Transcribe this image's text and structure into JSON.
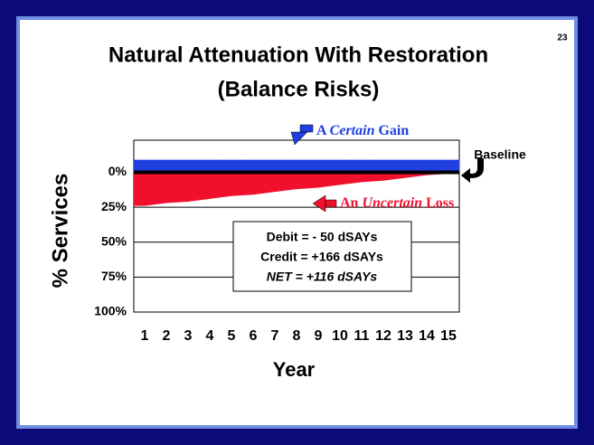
{
  "slide_number": "23",
  "chart_data": {
    "type": "balance",
    "title": [
      "Natural Attenuation With Restoration",
      "(Balance Risks)"
    ],
    "ylabel": "% Services",
    "xlabel": "Year",
    "categories": [
      "1",
      "2",
      "3",
      "4",
      "5",
      "6",
      "7",
      "8",
      "9",
      "10",
      "11",
      "12",
      "13",
      "14",
      "15"
    ],
    "ylim": [
      -23,
      100
    ],
    "yticks": [
      {
        "value": 0,
        "label": "0%"
      },
      {
        "value": 25,
        "label": "25%"
      },
      {
        "value": 50,
        "label": "50%"
      },
      {
        "value": 75,
        "label": "75%"
      },
      {
        "value": 100,
        "label": "100%"
      }
    ],
    "grid": true,
    "series": [
      {
        "name": [
          "A ",
          "Certain",
          " Gain"
        ],
        "color": "#1f3fe0",
        "values": [
          -9,
          -9,
          -9,
          -9,
          -9,
          -9,
          -9,
          -9,
          -9,
          -9,
          -9,
          -9,
          -9,
          -9,
          -9
        ]
      },
      {
        "name": [
          "An ",
          "Uncertain",
          " Loss"
        ],
        "color": "#f0102e",
        "values": [
          24,
          22,
          21,
          19,
          17,
          16,
          14,
          12,
          11,
          9,
          7,
          6,
          4,
          2,
          1
        ]
      }
    ],
    "annotations": {
      "baseline": "Baseline",
      "summary": [
        "Debit = - 50 dSAYs",
        "Credit = +166 dSAYs",
        "NET = +116 dSAYs"
      ]
    }
  }
}
